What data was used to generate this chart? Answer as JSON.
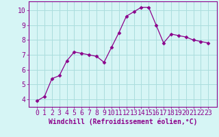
{
  "x": [
    0,
    1,
    2,
    3,
    4,
    5,
    6,
    7,
    8,
    9,
    10,
    11,
    12,
    13,
    14,
    15,
    16,
    17,
    18,
    19,
    20,
    21,
    22,
    23
  ],
  "y": [
    3.9,
    4.2,
    5.4,
    5.6,
    6.6,
    7.2,
    7.1,
    7.0,
    6.9,
    6.5,
    7.5,
    8.5,
    9.6,
    9.9,
    10.2,
    10.2,
    9.0,
    7.8,
    8.4,
    8.3,
    8.2,
    8.0,
    7.9,
    7.8
  ],
  "line_color": "#8B008B",
  "marker": "D",
  "marker_size": 2.5,
  "bg_color": "#d6f5f5",
  "grid_color": "#aadddd",
  "xlabel": "Windchill (Refroidissement éolien,°C)",
  "xlabel_color": "#8B008B",
  "xlabel_fontsize": 7,
  "tick_color": "#8B008B",
  "tick_fontsize": 7,
  "ylim": [
    3.5,
    10.6
  ],
  "yticks": [
    4,
    5,
    6,
    7,
    8,
    9,
    10
  ],
  "xticks": [
    0,
    1,
    2,
    3,
    4,
    5,
    6,
    7,
    8,
    9,
    10,
    11,
    12,
    13,
    14,
    15,
    16,
    17,
    18,
    19,
    20,
    21,
    22,
    23
  ]
}
